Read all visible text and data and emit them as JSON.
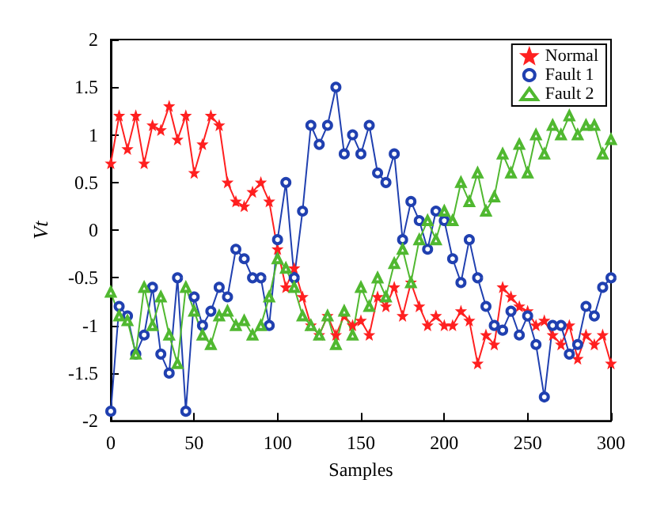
{
  "chart_data": {
    "type": "line",
    "xlabel": "Samples",
    "ylabel": "Vt",
    "xlim": [
      0,
      300
    ],
    "xticks": [
      0,
      50,
      100,
      150,
      200,
      250,
      300
    ],
    "ylim": [
      -2,
      2
    ],
    "yticks": [
      -2,
      -1.5,
      -1,
      -0.5,
      0,
      0.5,
      1,
      1.5,
      2
    ],
    "grid": false,
    "legend": "top right",
    "line_style": "solid",
    "x": [
      0,
      5,
      10,
      15,
      20,
      25,
      30,
      35,
      40,
      45,
      50,
      55,
      60,
      65,
      70,
      75,
      80,
      85,
      90,
      95,
      100,
      105,
      110,
      115,
      120,
      125,
      130,
      135,
      140,
      145,
      150,
      155,
      160,
      165,
      170,
      175,
      180,
      185,
      190,
      195,
      200,
      205,
      210,
      215,
      220,
      225,
      230,
      235,
      240,
      245,
      250,
      255,
      260,
      265,
      270,
      275,
      280,
      285,
      290,
      295,
      300
    ],
    "series": [
      {
        "name": "Normal",
        "color": "#ff2020",
        "marker": "star",
        "values": [
          0.7,
          1.2,
          0.85,
          1.2,
          0.7,
          1.1,
          1.05,
          1.3,
          0.95,
          1.2,
          0.6,
          0.9,
          1.2,
          1.1,
          0.5,
          0.3,
          0.25,
          0.4,
          0.5,
          0.3,
          -0.2,
          -0.6,
          -0.4,
          -0.7,
          -1.0,
          -1.1,
          -0.9,
          -1.1,
          -0.9,
          -1.0,
          -0.95,
          -1.1,
          -0.7,
          -0.8,
          -0.6,
          -0.9,
          -0.55,
          -0.8,
          -1.0,
          -0.9,
          -1.0,
          -1.0,
          -0.85,
          -0.95,
          -1.4,
          -1.1,
          -1.2,
          -0.6,
          -0.7,
          -0.8,
          -0.85,
          -1.0,
          -0.95,
          -1.1,
          -1.2,
          -1.0,
          -1.35,
          -1.1,
          -1.2,
          -1.1,
          -1.4
        ]
      },
      {
        "name": "Fault 1",
        "color": "#2040b0",
        "marker": "circle",
        "values": [
          -1.9,
          -0.8,
          -0.9,
          -1.3,
          -1.1,
          -0.6,
          -1.3,
          -1.5,
          -0.5,
          -1.9,
          -0.7,
          -1.0,
          -0.85,
          -0.6,
          -0.7,
          -0.2,
          -0.3,
          -0.5,
          -0.5,
          -1.0,
          -0.1,
          0.5,
          -0.5,
          0.2,
          1.1,
          0.9,
          1.1,
          1.5,
          0.8,
          1.0,
          0.8,
          1.1,
          0.6,
          0.5,
          0.8,
          -0.1,
          0.3,
          0.1,
          -0.2,
          0.2,
          0.1,
          -0.3,
          -0.55,
          -0.1,
          -0.5,
          -0.8,
          -1.0,
          -1.05,
          -0.85,
          -1.1,
          -0.9,
          -1.2,
          -1.75,
          -1.0,
          -1.0,
          -1.3,
          -1.2,
          -0.8,
          -0.9,
          -0.6,
          -0.5
        ]
      },
      {
        "name": "Fault 2",
        "color": "#50b830",
        "marker": "triangle",
        "values": [
          -0.65,
          -0.9,
          -0.95,
          -1.3,
          -0.6,
          -1.0,
          -0.7,
          -1.1,
          -1.4,
          -0.6,
          -0.85,
          -1.1,
          -1.2,
          -0.9,
          -0.85,
          -1.0,
          -0.95,
          -1.1,
          -1.0,
          -0.7,
          -0.3,
          -0.4,
          -0.6,
          -0.9,
          -1.0,
          -1.1,
          -0.9,
          -1.2,
          -0.85,
          -1.1,
          -0.6,
          -0.8,
          -0.5,
          -0.7,
          -0.35,
          -0.2,
          -0.55,
          -0.1,
          0.1,
          -0.1,
          0.2,
          0.1,
          0.5,
          0.3,
          0.6,
          0.2,
          0.35,
          0.8,
          0.6,
          0.9,
          0.6,
          1.0,
          0.8,
          1.1,
          1.0,
          1.2,
          1.0,
          1.1,
          1.1,
          0.8,
          0.95
        ]
      }
    ]
  }
}
